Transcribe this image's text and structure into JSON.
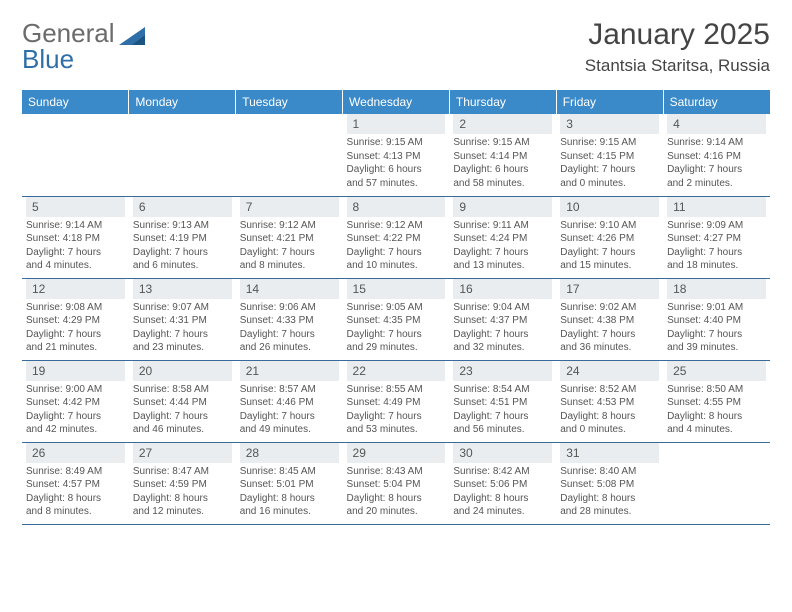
{
  "logo": {
    "text1": "General",
    "text2": "Blue"
  },
  "title": "January 2025",
  "location": "Stantsia Staritsa, Russia",
  "colors": {
    "header_bg": "#3a89c9",
    "header_text": "#ffffff",
    "daynum_bg": "#e9edf0",
    "border": "#3a6a99",
    "body_text": "#555555",
    "logo_gray": "#6b6b6b",
    "logo_blue": "#2f6fa8"
  },
  "days_of_week": [
    "Sunday",
    "Monday",
    "Tuesday",
    "Wednesday",
    "Thursday",
    "Friday",
    "Saturday"
  ],
  "weeks": [
    [
      null,
      null,
      null,
      {
        "n": "1",
        "sr": "Sunrise: 9:15 AM",
        "ss": "Sunset: 4:13 PM",
        "d1": "Daylight: 6 hours",
        "d2": "and 57 minutes."
      },
      {
        "n": "2",
        "sr": "Sunrise: 9:15 AM",
        "ss": "Sunset: 4:14 PM",
        "d1": "Daylight: 6 hours",
        "d2": "and 58 minutes."
      },
      {
        "n": "3",
        "sr": "Sunrise: 9:15 AM",
        "ss": "Sunset: 4:15 PM",
        "d1": "Daylight: 7 hours",
        "d2": "and 0 minutes."
      },
      {
        "n": "4",
        "sr": "Sunrise: 9:14 AM",
        "ss": "Sunset: 4:16 PM",
        "d1": "Daylight: 7 hours",
        "d2": "and 2 minutes."
      }
    ],
    [
      {
        "n": "5",
        "sr": "Sunrise: 9:14 AM",
        "ss": "Sunset: 4:18 PM",
        "d1": "Daylight: 7 hours",
        "d2": "and 4 minutes."
      },
      {
        "n": "6",
        "sr": "Sunrise: 9:13 AM",
        "ss": "Sunset: 4:19 PM",
        "d1": "Daylight: 7 hours",
        "d2": "and 6 minutes."
      },
      {
        "n": "7",
        "sr": "Sunrise: 9:12 AM",
        "ss": "Sunset: 4:21 PM",
        "d1": "Daylight: 7 hours",
        "d2": "and 8 minutes."
      },
      {
        "n": "8",
        "sr": "Sunrise: 9:12 AM",
        "ss": "Sunset: 4:22 PM",
        "d1": "Daylight: 7 hours",
        "d2": "and 10 minutes."
      },
      {
        "n": "9",
        "sr": "Sunrise: 9:11 AM",
        "ss": "Sunset: 4:24 PM",
        "d1": "Daylight: 7 hours",
        "d2": "and 13 minutes."
      },
      {
        "n": "10",
        "sr": "Sunrise: 9:10 AM",
        "ss": "Sunset: 4:26 PM",
        "d1": "Daylight: 7 hours",
        "d2": "and 15 minutes."
      },
      {
        "n": "11",
        "sr": "Sunrise: 9:09 AM",
        "ss": "Sunset: 4:27 PM",
        "d1": "Daylight: 7 hours",
        "d2": "and 18 minutes."
      }
    ],
    [
      {
        "n": "12",
        "sr": "Sunrise: 9:08 AM",
        "ss": "Sunset: 4:29 PM",
        "d1": "Daylight: 7 hours",
        "d2": "and 21 minutes."
      },
      {
        "n": "13",
        "sr": "Sunrise: 9:07 AM",
        "ss": "Sunset: 4:31 PM",
        "d1": "Daylight: 7 hours",
        "d2": "and 23 minutes."
      },
      {
        "n": "14",
        "sr": "Sunrise: 9:06 AM",
        "ss": "Sunset: 4:33 PM",
        "d1": "Daylight: 7 hours",
        "d2": "and 26 minutes."
      },
      {
        "n": "15",
        "sr": "Sunrise: 9:05 AM",
        "ss": "Sunset: 4:35 PM",
        "d1": "Daylight: 7 hours",
        "d2": "and 29 minutes."
      },
      {
        "n": "16",
        "sr": "Sunrise: 9:04 AM",
        "ss": "Sunset: 4:37 PM",
        "d1": "Daylight: 7 hours",
        "d2": "and 32 minutes."
      },
      {
        "n": "17",
        "sr": "Sunrise: 9:02 AM",
        "ss": "Sunset: 4:38 PM",
        "d1": "Daylight: 7 hours",
        "d2": "and 36 minutes."
      },
      {
        "n": "18",
        "sr": "Sunrise: 9:01 AM",
        "ss": "Sunset: 4:40 PM",
        "d1": "Daylight: 7 hours",
        "d2": "and 39 minutes."
      }
    ],
    [
      {
        "n": "19",
        "sr": "Sunrise: 9:00 AM",
        "ss": "Sunset: 4:42 PM",
        "d1": "Daylight: 7 hours",
        "d2": "and 42 minutes."
      },
      {
        "n": "20",
        "sr": "Sunrise: 8:58 AM",
        "ss": "Sunset: 4:44 PM",
        "d1": "Daylight: 7 hours",
        "d2": "and 46 minutes."
      },
      {
        "n": "21",
        "sr": "Sunrise: 8:57 AM",
        "ss": "Sunset: 4:46 PM",
        "d1": "Daylight: 7 hours",
        "d2": "and 49 minutes."
      },
      {
        "n": "22",
        "sr": "Sunrise: 8:55 AM",
        "ss": "Sunset: 4:49 PM",
        "d1": "Daylight: 7 hours",
        "d2": "and 53 minutes."
      },
      {
        "n": "23",
        "sr": "Sunrise: 8:54 AM",
        "ss": "Sunset: 4:51 PM",
        "d1": "Daylight: 7 hours",
        "d2": "and 56 minutes."
      },
      {
        "n": "24",
        "sr": "Sunrise: 8:52 AM",
        "ss": "Sunset: 4:53 PM",
        "d1": "Daylight: 8 hours",
        "d2": "and 0 minutes."
      },
      {
        "n": "25",
        "sr": "Sunrise: 8:50 AM",
        "ss": "Sunset: 4:55 PM",
        "d1": "Daylight: 8 hours",
        "d2": "and 4 minutes."
      }
    ],
    [
      {
        "n": "26",
        "sr": "Sunrise: 8:49 AM",
        "ss": "Sunset: 4:57 PM",
        "d1": "Daylight: 8 hours",
        "d2": "and 8 minutes."
      },
      {
        "n": "27",
        "sr": "Sunrise: 8:47 AM",
        "ss": "Sunset: 4:59 PM",
        "d1": "Daylight: 8 hours",
        "d2": "and 12 minutes."
      },
      {
        "n": "28",
        "sr": "Sunrise: 8:45 AM",
        "ss": "Sunset: 5:01 PM",
        "d1": "Daylight: 8 hours",
        "d2": "and 16 minutes."
      },
      {
        "n": "29",
        "sr": "Sunrise: 8:43 AM",
        "ss": "Sunset: 5:04 PM",
        "d1": "Daylight: 8 hours",
        "d2": "and 20 minutes."
      },
      {
        "n": "30",
        "sr": "Sunrise: 8:42 AM",
        "ss": "Sunset: 5:06 PM",
        "d1": "Daylight: 8 hours",
        "d2": "and 24 minutes."
      },
      {
        "n": "31",
        "sr": "Sunrise: 8:40 AM",
        "ss": "Sunset: 5:08 PM",
        "d1": "Daylight: 8 hours",
        "d2": "and 28 minutes."
      },
      null
    ]
  ]
}
